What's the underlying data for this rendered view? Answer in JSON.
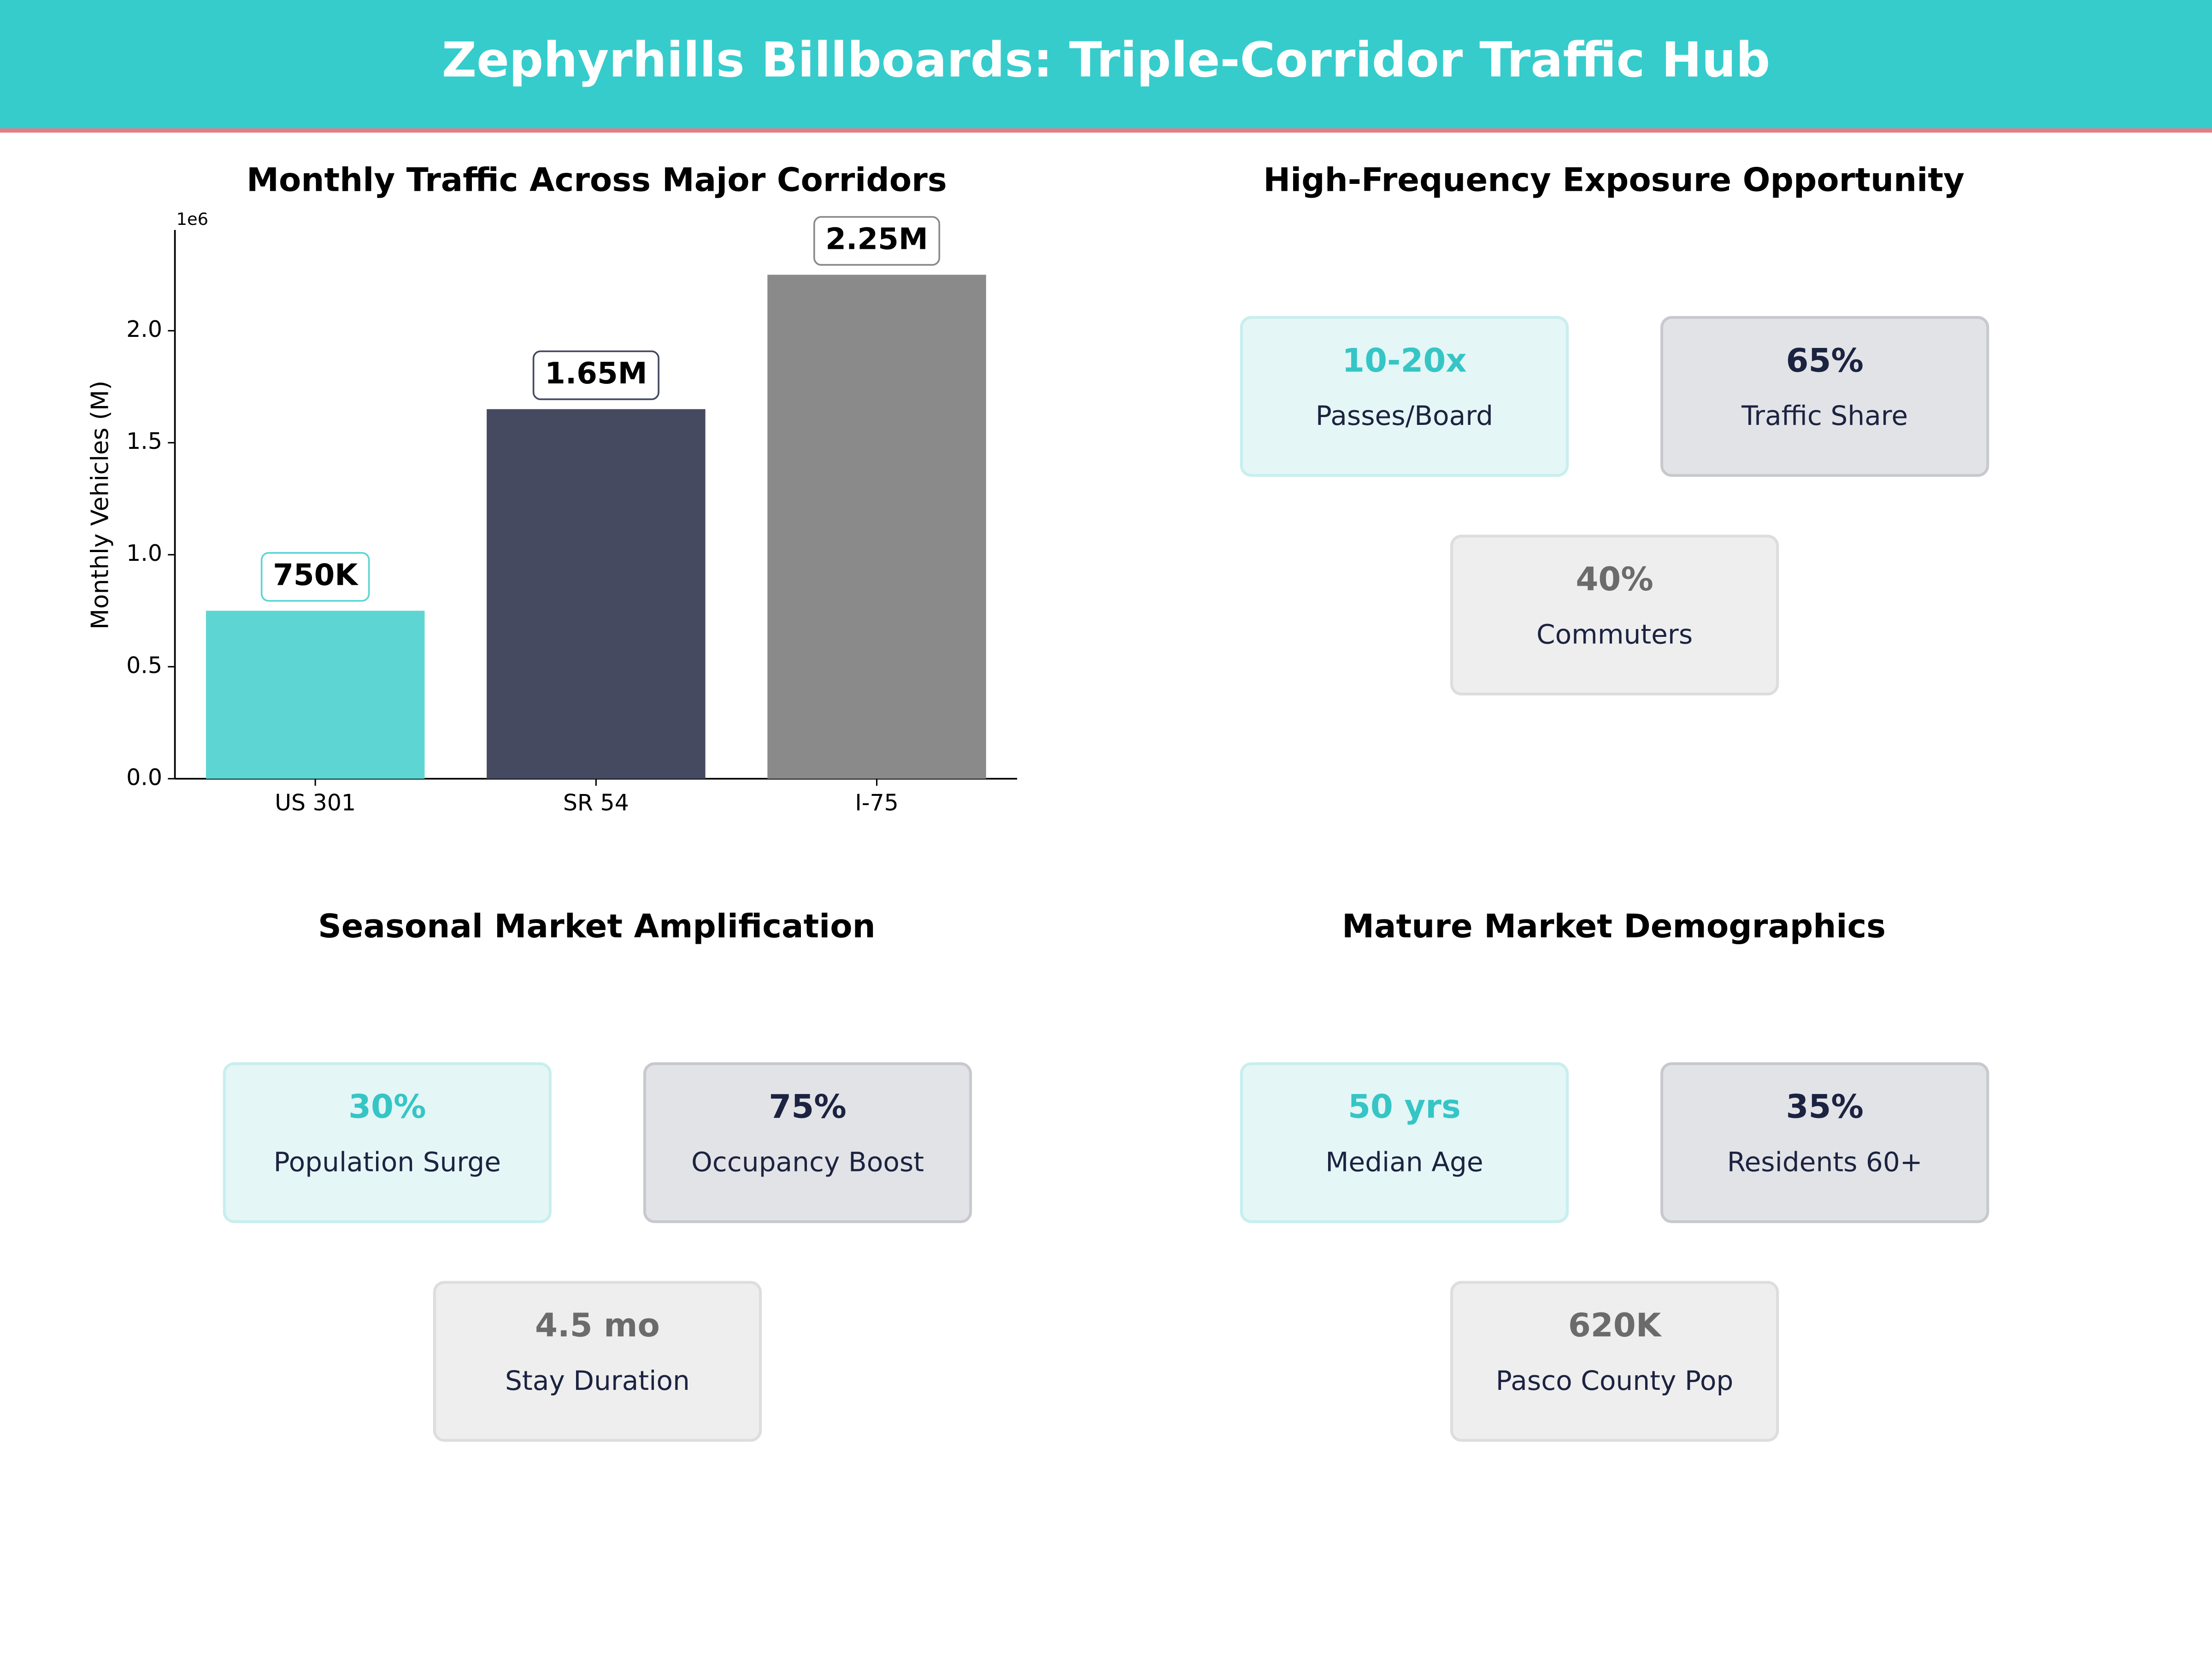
{
  "title": "Zephyrhills Billboards: Triple-Corridor Traffic Hub",
  "chart_data": {
    "type": "bar",
    "title": "Monthly Traffic Across Major Corridors",
    "ylabel": "Monthly Vehicles (M)",
    "y_offset_label": "1e6",
    "categories": [
      "US 301",
      "SR 54",
      "I-75"
    ],
    "values": [
      750000,
      1650000,
      2250000
    ],
    "value_labels": [
      "750K",
      "1.65M",
      "2.25M"
    ],
    "colors": [
      "#5dd6d3",
      "#454a61",
      "#8a8a8a"
    ],
    "ylim": [
      0,
      2450000
    ],
    "yticks": [
      {
        "value": 0,
        "label": "0.0"
      },
      {
        "value": 500000,
        "label": "0.5"
      },
      {
        "value": 1000000,
        "label": "1.0"
      },
      {
        "value": 1500000,
        "label": "1.5"
      },
      {
        "value": 2000000,
        "label": "2.0"
      }
    ],
    "grid": false
  },
  "panels": [
    {
      "title": "High-Frequency Exposure Opportunity",
      "cards": [
        {
          "value": "10-20x",
          "label": "Passes/Board"
        },
        {
          "value": "65%",
          "label": "Traffic Share"
        },
        {
          "value": "40%",
          "label": "Commuters"
        }
      ]
    },
    {
      "title": "Seasonal Market Amplification",
      "cards": [
        {
          "value": "30%",
          "label": "Population Surge"
        },
        {
          "value": "75%",
          "label": "Occupancy Boost"
        },
        {
          "value": "4.5 mo",
          "label": "Stay Duration"
        }
      ]
    },
    {
      "title": "Mature Market Demographics",
      "cards": [
        {
          "value": "50 yrs",
          "label": "Median Age"
        },
        {
          "value": "35%",
          "label": "Residents 60+"
        },
        {
          "value": "620K",
          "label": "Pasco County Pop"
        }
      ]
    }
  ]
}
